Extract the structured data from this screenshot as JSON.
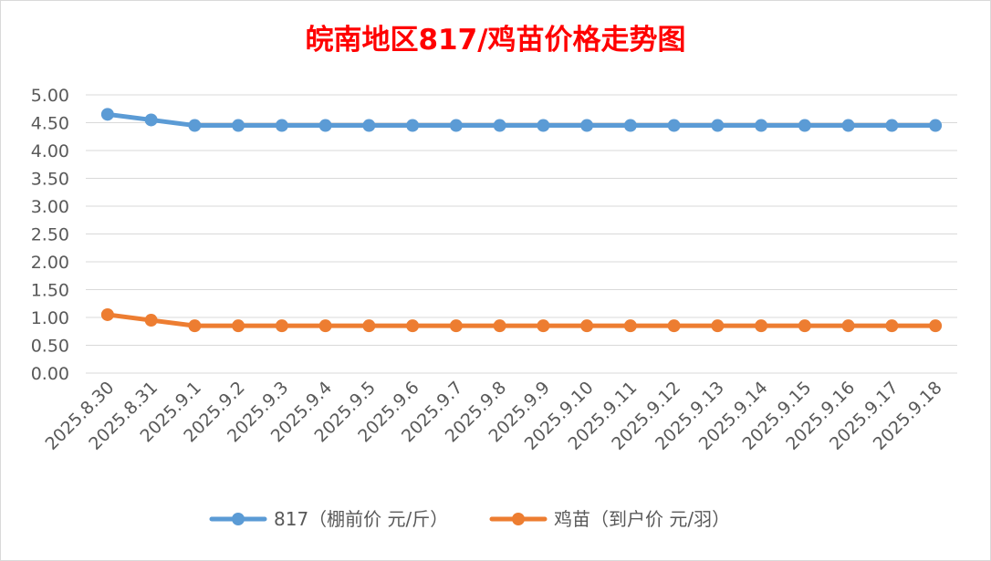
{
  "chart_data": {
    "type": "line",
    "title": "皖南地区817/鸡苗价格走势图",
    "xlabel": "",
    "ylabel": "",
    "ylim": [
      0,
      5
    ],
    "ytick_step": 0.5,
    "ytick_labels": [
      "0.00",
      "0.50",
      "1.00",
      "1.50",
      "2.00",
      "2.50",
      "3.00",
      "3.50",
      "4.00",
      "4.50",
      "5.00"
    ],
    "grid": true,
    "legend_position": "bottom",
    "categories": [
      "2025.8.30",
      "2025.8.31",
      "2025.9.1",
      "2025.9.2",
      "2025.9.3",
      "2025.9.4",
      "2025.9.5",
      "2025.9.6",
      "2025.9.7",
      "2025.9.8",
      "2025.9.9",
      "2025.9.10",
      "2025.9.11",
      "2025.9.12",
      "2025.9.13",
      "2025.9.14",
      "2025.9.15",
      "2025.9.16",
      "2025.9.17",
      "2025.9.18"
    ],
    "series": [
      {
        "name": "817（棚前价 元/斤）",
        "color": "#5b9bd5",
        "values": [
          4.65,
          4.55,
          4.45,
          4.45,
          4.45,
          4.45,
          4.45,
          4.45,
          4.45,
          4.45,
          4.45,
          4.45,
          4.45,
          4.45,
          4.45,
          4.45,
          4.45,
          4.45,
          4.45,
          4.45
        ]
      },
      {
        "name": "鸡苗（到户价 元/羽）",
        "color": "#ed7d31",
        "values": [
          1.05,
          0.95,
          0.85,
          0.85,
          0.85,
          0.85,
          0.85,
          0.85,
          0.85,
          0.85,
          0.85,
          0.85,
          0.85,
          0.85,
          0.85,
          0.85,
          0.85,
          0.85,
          0.85,
          0.85
        ]
      }
    ]
  },
  "style": {
    "title_color": "#ff0000",
    "grid_color": "#d9d9d9",
    "text_color": "#595959",
    "border_color": "#d9d9d9"
  }
}
